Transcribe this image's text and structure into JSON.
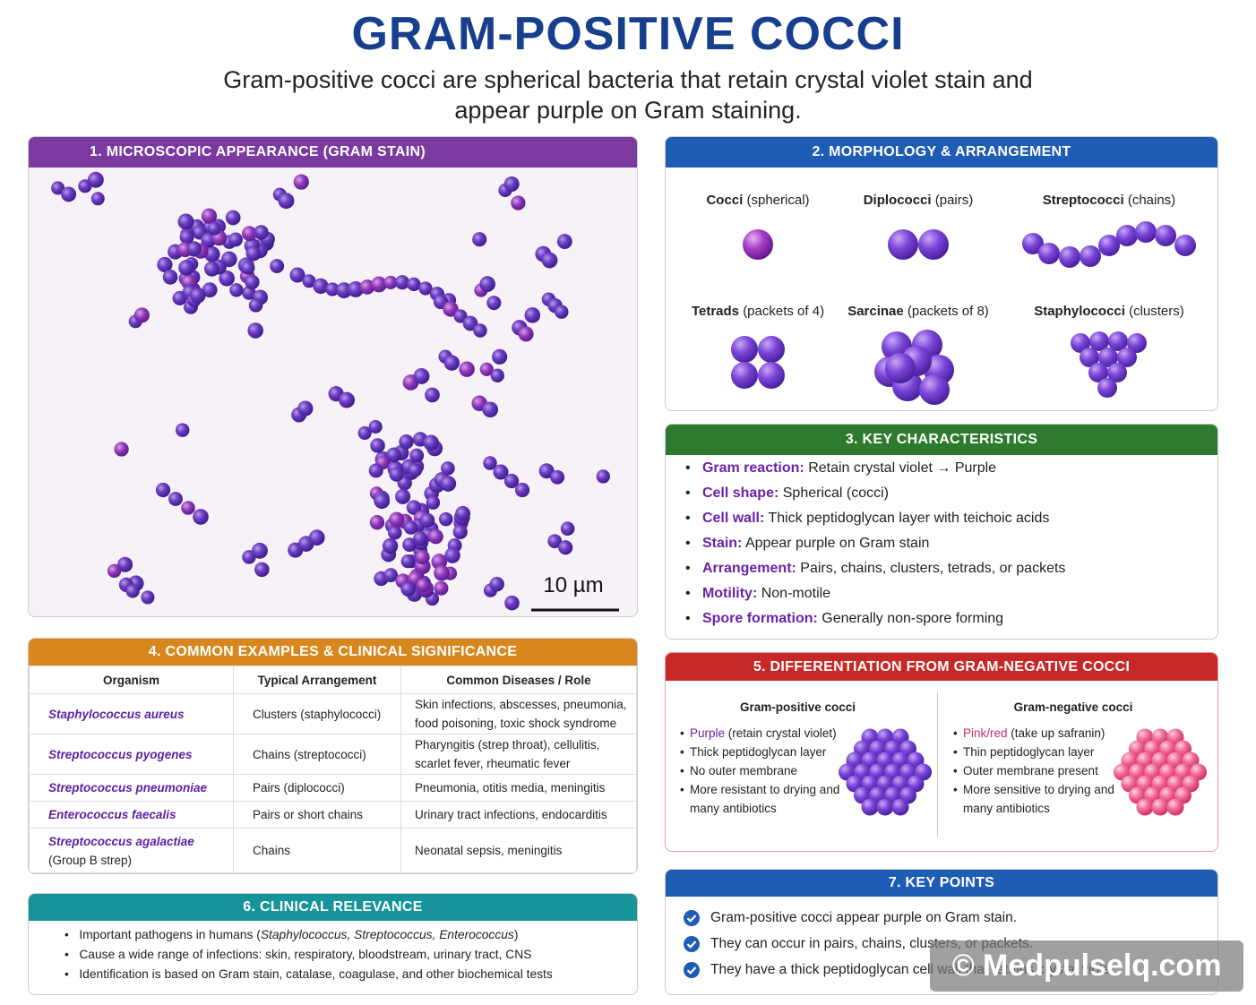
{
  "header": {
    "title": "GRAM-POSITIVE COCCI",
    "subtitle": "Gram-positive cocci are spherical bacteria that retain crystal violet stain and appear purple on Gram staining."
  },
  "microscopy": {
    "title": "1. MICROSCOPIC APPEARANCE (GRAM STAIN)",
    "scale_bar": "10 µm"
  },
  "morphology": {
    "title": "2. MORPHOLOGY & ARRANGEMENT",
    "items": [
      {
        "name": "Cocci",
        "desc": "(spherical)"
      },
      {
        "name": "Diplococci",
        "desc": "(pairs)"
      },
      {
        "name": "Streptococci",
        "desc": "(chains)"
      },
      {
        "name": "Tetrads",
        "desc": "(packets of 4)"
      },
      {
        "name": "Sarcinae",
        "desc": "(packets of 8)"
      },
      {
        "name": "Staphylococci",
        "desc": "(clusters)"
      }
    ]
  },
  "characteristics": {
    "title": "3. KEY CHARACTERISTICS",
    "items": [
      {
        "label": "Gram reaction:",
        "text": "Retain crystal violet → Purple"
      },
      {
        "label": "Cell shape:",
        "text": "Spherical (cocci)"
      },
      {
        "label": "Cell wall:",
        "text": "Thick peptidoglycan layer with teichoic acids"
      },
      {
        "label": "Stain:",
        "text": "Appear purple on Gram stain"
      },
      {
        "label": "Arrangement:",
        "text": "Pairs, chains, clusters, tetrads, or packets"
      },
      {
        "label": "Motility:",
        "text": "Non-motile"
      },
      {
        "label": "Spore formation:",
        "text": "Generally non-spore forming"
      }
    ]
  },
  "examples": {
    "title": "4. COMMON EXAMPLES & CLINICAL SIGNIFICANCE",
    "columns": [
      "Organism",
      "Typical Arrangement",
      "Common Diseases / Role"
    ],
    "rows": [
      {
        "organism": "Staphylococcus aureus",
        "arrangement": "Clusters (staphylococci)",
        "diseases": "Skin infections, abscesses, pneumonia, food poisoning, toxic shock syndrome"
      },
      {
        "organism": "Streptococcus pyogenes",
        "arrangement": "Chains (streptococci)",
        "diseases": "Pharyngitis (strep throat), cellulitis, scarlet fever, rheumatic fever"
      },
      {
        "organism": "Streptococcus pneumoniae",
        "arrangement": "Pairs (diplococci)",
        "diseases": "Pneumonia, otitis media, meningitis"
      },
      {
        "organism": "Enterococcus faecalis",
        "arrangement": "Pairs or short chains",
        "diseases": "Urinary tract infections, endocarditis"
      },
      {
        "organism": "Streptococcus agalactiae",
        "note": "(Group B strep)",
        "arrangement": "Chains",
        "diseases": "Neonatal sepsis, meningitis"
      }
    ]
  },
  "differentiation": {
    "title": "5. DIFFERENTIATION FROM GRAM-NEGATIVE COCCI",
    "positive": {
      "heading": "Gram-positive cocci",
      "items": [
        {
          "label": "Purple",
          "text": "(retain crystal violet)"
        },
        {
          "text": "Thick peptidoglycan layer"
        },
        {
          "text": "No outer membrane"
        },
        {
          "text": "More resistant to drying and many antibiotics"
        }
      ]
    },
    "negative": {
      "heading": "Gram-negative cocci",
      "items": [
        {
          "label": "Pink/red",
          "text": "(take up safranin)"
        },
        {
          "text": "Thin peptidoglycan layer"
        },
        {
          "text": "Outer membrane present"
        },
        {
          "text": "More sensitive to drying and many antibiotics"
        }
      ]
    }
  },
  "clinical": {
    "title": "6. CLINICAL RELEVANCE",
    "items": [
      {
        "text": "Important pathogens in humans (",
        "italic": "Staphylococcus, Streptococcus, Enterococcus",
        "after": ")"
      },
      {
        "text": "Cause a wide range of infections: skin, respiratory, bloodstream, urinary tract, CNS"
      },
      {
        "text": "Identification is based on Gram stain, catalase, coagulase, and other biochemical tests"
      }
    ]
  },
  "key_points": {
    "title": "7. KEY POINTS",
    "items": [
      "Gram-positive cocci appear purple on Gram stain.",
      "They can occur in pairs, chains, clusters, or packets.",
      "They have a thick peptidoglycan cell wall that retains crystal violet."
    ]
  },
  "watermark": "© Medpulselq.com"
}
